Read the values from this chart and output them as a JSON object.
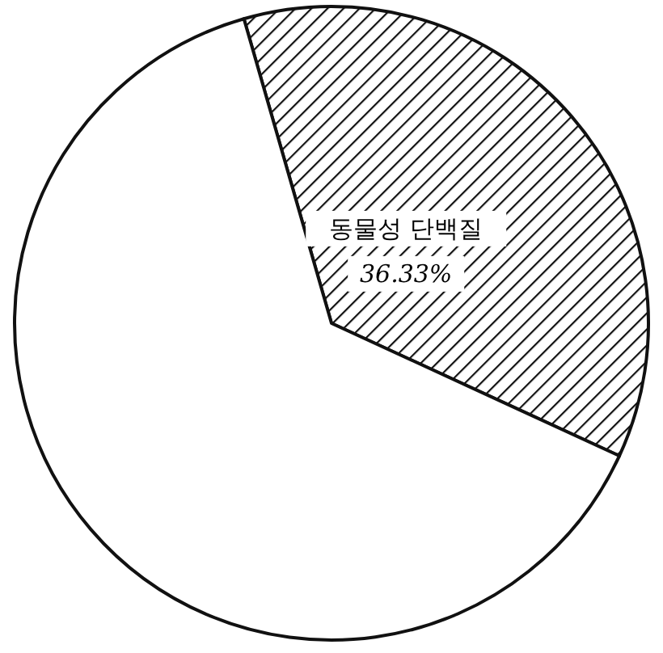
{
  "chart_data": {
    "type": "pie",
    "categories": [
      "동물성 단백질",
      null
    ],
    "values": [
      36.33,
      63.67
    ],
    "colors": [
      "#111111",
      "#ffffff"
    ],
    "value_labels": [
      "36.33%",
      null
    ]
  }
}
